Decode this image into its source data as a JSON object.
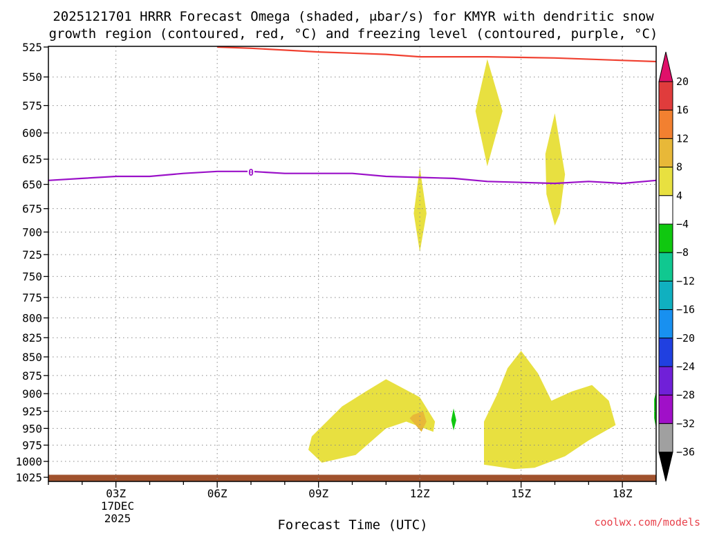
{
  "title_line1": "2025121701 HRRR Forecast Omega (shaded, μbar/s) for KMYR with dendritic snow",
  "title_line2": "growth region (contoured, red, °C) and freezing level (contoured, purple, °C)",
  "xlabel": "Forecast Time (UTC)",
  "credit": "coolwx.com/models",
  "x_date": [
    "17DEC",
    "2025"
  ],
  "colors": {
    "dgz_line": "#f04030",
    "freezing_line": "#9a10c8",
    "ground": "#a0522d",
    "grid": "#888888"
  },
  "chart_data": {
    "type": "area",
    "x_axis": {
      "unit": "forecast hour from 00Z",
      "range": [
        1,
        19
      ],
      "ticks": [
        {
          "x": 3,
          "label": "03Z"
        },
        {
          "x": 6,
          "label": "06Z"
        },
        {
          "x": 9,
          "label": "09Z"
        },
        {
          "x": 12,
          "label": "12Z"
        },
        {
          "x": 15,
          "label": "15Z"
        },
        {
          "x": 18,
          "label": "18Z"
        }
      ]
    },
    "y_axis": {
      "unit": "hPa",
      "scale": "log",
      "range": [
        1025,
        525
      ],
      "ticks": [
        525,
        550,
        575,
        600,
        625,
        650,
        675,
        700,
        725,
        750,
        775,
        800,
        825,
        850,
        875,
        900,
        925,
        950,
        975,
        1000,
        1025
      ]
    },
    "grid": true,
    "colorbar": {
      "levels": [
        {
          "label": "20",
          "color": "#e03c3c"
        },
        {
          "label": "16",
          "color": "#f28030"
        },
        {
          "label": "12",
          "color": "#e8b838"
        },
        {
          "label": "8",
          "color": "#e8e040"
        },
        {
          "label": "4",
          "color": "#ffffff"
        },
        {
          "label": "−4",
          "color": "#10c810"
        },
        {
          "label": "−8",
          "color": "#10c890"
        },
        {
          "label": "−12",
          "color": "#10b0c0"
        },
        {
          "label": "−16",
          "color": "#1890f0"
        },
        {
          "label": "−20",
          "color": "#2040e0"
        },
        {
          "label": "−24",
          "color": "#7020d8"
        },
        {
          "label": "−28",
          "color": "#a010c8"
        },
        {
          "label": "−32",
          "color": "#a0a0a0"
        },
        {
          "label": "−36",
          "color": null
        }
      ],
      "top_arrow_color": "#e0106a",
      "bottom_arrow_color": "#000000"
    },
    "contours": [
      {
        "name": "dendritic snow growth region",
        "color": "#f04030",
        "points": [
          [
            6,
            525
          ],
          [
            7,
            526
          ],
          [
            9,
            529
          ],
          [
            11,
            531
          ],
          [
            12,
            533
          ],
          [
            14,
            533
          ],
          [
            16,
            534
          ],
          [
            18,
            536
          ],
          [
            19,
            537
          ]
        ]
      },
      {
        "name": "freezing level",
        "color": "#9a10c8",
        "label": "0",
        "label_at": [
          7,
          638
        ],
        "points": [
          [
            1,
            646
          ],
          [
            2,
            644
          ],
          [
            3,
            642
          ],
          [
            4,
            642
          ],
          [
            5,
            639
          ],
          [
            6,
            637
          ],
          [
            7,
            637
          ],
          [
            8,
            639
          ],
          [
            9,
            639
          ],
          [
            10,
            639
          ],
          [
            11,
            642
          ],
          [
            12,
            643
          ],
          [
            13,
            644
          ],
          [
            14,
            647
          ],
          [
            15,
            648
          ],
          [
            16,
            649
          ],
          [
            17,
            647
          ],
          [
            18,
            649
          ],
          [
            19,
            646
          ]
        ]
      }
    ],
    "shaded_regions": [
      {
        "color": "#e8e040",
        "points": [
          [
            14,
            535
          ],
          [
            14.45,
            580
          ],
          [
            14,
            632
          ],
          [
            13.65,
            580
          ]
        ]
      },
      {
        "color": "#e8e040",
        "points": [
          [
            16,
            582
          ],
          [
            16.3,
            640
          ],
          [
            16.15,
            680
          ],
          [
            16,
            693
          ],
          [
            15.75,
            660
          ],
          [
            15.72,
            620
          ]
        ]
      },
      {
        "color": "#e8e040",
        "points": [
          [
            12,
            633
          ],
          [
            12.2,
            680
          ],
          [
            12,
            722
          ],
          [
            11.82,
            680
          ]
        ]
      },
      {
        "color": "#e8e040",
        "points": [
          [
            9.1,
            1002
          ],
          [
            10.1,
            990
          ],
          [
            11,
            950
          ],
          [
            11.6,
            940
          ],
          [
            12.4,
            955
          ],
          [
            12.45,
            940
          ],
          [
            12,
            905
          ],
          [
            11,
            880
          ],
          [
            10.4,
            897
          ],
          [
            9.7,
            918
          ],
          [
            8.8,
            962
          ],
          [
            8.7,
            982
          ]
        ]
      },
      {
        "color": "#e8b838",
        "points": [
          [
            11.8,
            930
          ],
          [
            12.1,
            925
          ],
          [
            12.2,
            940
          ],
          [
            12.05,
            955
          ],
          [
            11.7,
            935
          ]
        ]
      },
      {
        "color": "#10c810",
        "points": [
          [
            13,
            921
          ],
          [
            13.08,
            938
          ],
          [
            13,
            953
          ],
          [
            12.93,
            938
          ]
        ]
      },
      {
        "color": "#e8e040",
        "points": [
          [
            15,
            842
          ],
          [
            15.5,
            872
          ],
          [
            15.9,
            910
          ],
          [
            16.5,
            897
          ],
          [
            17.1,
            888
          ],
          [
            17.6,
            910
          ],
          [
            17.8,
            945
          ],
          [
            17,
            968
          ],
          [
            16.3,
            992
          ],
          [
            15.4,
            1010
          ],
          [
            14.8,
            1012
          ],
          [
            13.9,
            1005
          ],
          [
            13.9,
            940
          ],
          [
            14.3,
            900
          ],
          [
            14.6,
            865
          ]
        ]
      },
      {
        "color": "#10c810",
        "points": [
          [
            19,
            897
          ],
          [
            19,
            950
          ],
          [
            18.94,
            935
          ],
          [
            18.94,
            908
          ]
        ]
      }
    ],
    "ground": {
      "color": "#a0522d",
      "pressure_top": 1021
    }
  }
}
